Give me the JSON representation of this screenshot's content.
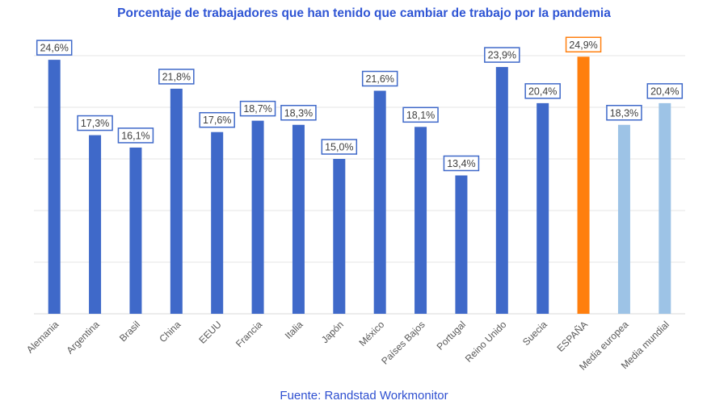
{
  "chart_data": {
    "type": "bar",
    "title": "Porcentaje de trabajadores que han tenido que cambiar de trabajo por la pandemia",
    "source": "Fuente: Randstad Workmonitor",
    "xlabel": "",
    "ylabel": "",
    "ylim": [
      0,
      25
    ],
    "grid": true,
    "gridStep": 5,
    "categories": [
      "Alemania",
      "Argentina",
      "Brasil",
      "China",
      "EEUU",
      "Francia",
      "Italia",
      "Japón",
      "México",
      "Países Bajos",
      "Portugal",
      "Reino Unido",
      "Suecia",
      "ESPAÑA",
      "Media europea",
      "Media mundial"
    ],
    "values": [
      24.6,
      17.3,
      16.1,
      21.8,
      17.6,
      18.7,
      18.3,
      15.0,
      21.6,
      18.1,
      13.4,
      23.9,
      20.4,
      24.9,
      18.3,
      20.4
    ],
    "labels": [
      "24,6%",
      "17,3%",
      "16,1%",
      "21,8%",
      "17,6%",
      "18,7%",
      "18,3%",
      "15,0%",
      "21,6%",
      "18,1%",
      "13,4%",
      "23,9%",
      "20,4%",
      "24,9%",
      "18,3%",
      "20,4%"
    ],
    "colors": [
      "#3f69c9",
      "#3f69c9",
      "#3f69c9",
      "#3f69c9",
      "#3f69c9",
      "#3f69c9",
      "#3f69c9",
      "#3f69c9",
      "#3f69c9",
      "#3f69c9",
      "#3f69c9",
      "#3f69c9",
      "#3f69c9",
      "#ff7f0e",
      "#9dc3e6",
      "#9dc3e6"
    ],
    "labelBorders": [
      "#3f69c9",
      "#3f69c9",
      "#3f69c9",
      "#3f69c9",
      "#3f69c9",
      "#3f69c9",
      "#3f69c9",
      "#3f69c9",
      "#3f69c9",
      "#3f69c9",
      "#3f69c9",
      "#3f69c9",
      "#3f69c9",
      "#ff7f0e",
      "#3f69c9",
      "#3f69c9"
    ]
  }
}
